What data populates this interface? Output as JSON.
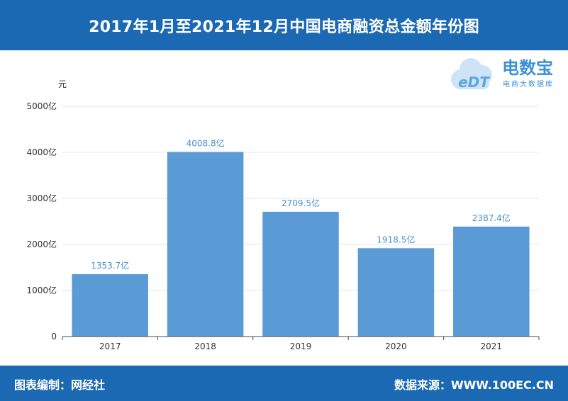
{
  "header": {
    "title": "2017年1月至2021年12月中国电商融资总金额年份图"
  },
  "logo": {
    "mark": "eDT",
    "name": "电数宝",
    "tagline": "电商大数据库"
  },
  "footer": {
    "left": "图表编制：网经社",
    "right": "数据来源：WWW.100EC.CN"
  },
  "colors": {
    "brand": "#1b69b3",
    "bar": "#5b9bd5",
    "label": "#4a8fd0"
  },
  "chart_data": {
    "type": "bar",
    "title": "",
    "ylabel": "元",
    "categories": [
      "2017",
      "2018",
      "2019",
      "2020",
      "2021"
    ],
    "values": [
      1353.7,
      4008.8,
      2709.5,
      1918.5,
      2387.4
    ],
    "value_labels": [
      "1353.7亿",
      "4008.8亿",
      "2709.5亿",
      "1918.5亿",
      "2387.4亿"
    ],
    "yticks": [
      0,
      1000,
      2000,
      3000,
      4000,
      5000
    ],
    "ytick_labels": [
      "0",
      "1000亿",
      "2000亿",
      "3000亿",
      "4000亿",
      "5000亿"
    ],
    "ylim": [
      0,
      5000
    ],
    "grid": true
  }
}
